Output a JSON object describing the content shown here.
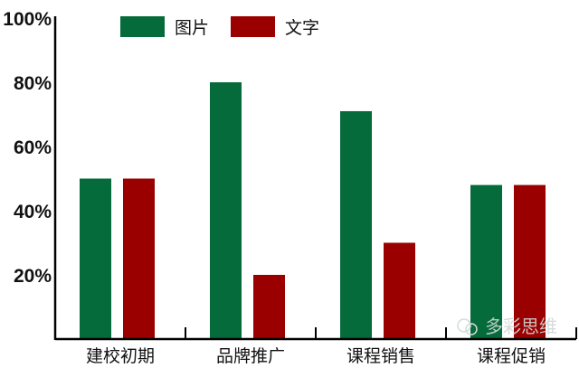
{
  "chart_data": {
    "type": "bar",
    "categories": [
      "建校初期",
      "品牌推广",
      "课程销售",
      "课程促销"
    ],
    "series": [
      {
        "name": "图片",
        "values": [
          50,
          80,
          71,
          48
        ],
        "color": "#066b3a"
      },
      {
        "name": "文字",
        "values": [
          50,
          20,
          30,
          48
        ],
        "color": "#9b0000"
      }
    ],
    "yticks": [
      "20%",
      "40%",
      "60%",
      "80%",
      "100%"
    ],
    "ytick_values": [
      20,
      40,
      60,
      80,
      100
    ],
    "ylim": [
      0,
      100
    ],
    "grid": false,
    "legend": "top",
    "xlabel": "",
    "ylabel": "",
    "title": ""
  },
  "watermark": "多彩思维"
}
